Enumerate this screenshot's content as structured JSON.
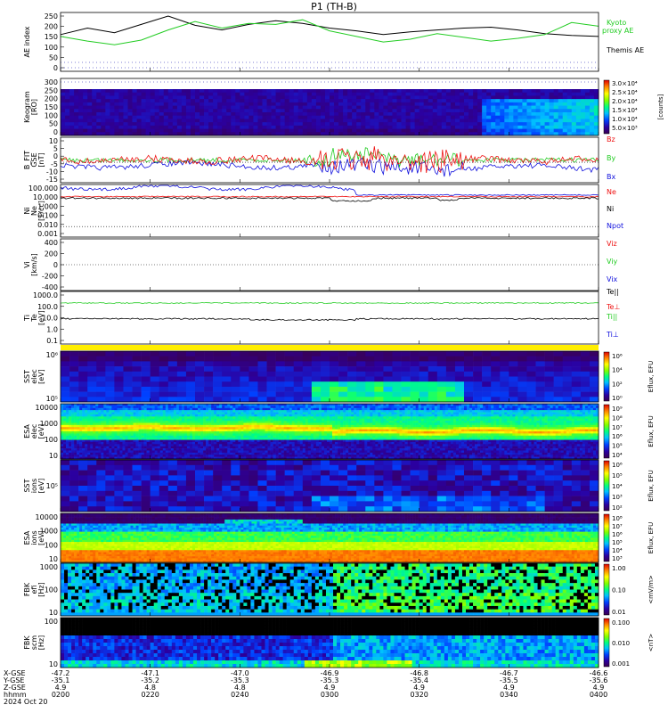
{
  "title": "P1  (TH-B)",
  "colors": {
    "black": "#000000",
    "green": "#22cc22",
    "red": "#ee1111",
    "blue": "#1111dd",
    "yellow": "#ffee00"
  },
  "chart_data": [
    {
      "type": "line",
      "panel": "ae",
      "ylabel": "AE index",
      "ytick_labels": [
        "250",
        "200",
        "150",
        "100",
        "50",
        "0"
      ],
      "legend": [
        {
          "name": "Kyoto\nproxy AE",
          "color": "#22cc22"
        },
        {
          "name": "Themis AE",
          "color": "#000000"
        }
      ],
      "series": [
        {
          "name": "Themis AE",
          "color": "#000000",
          "x": [
            0,
            0.05,
            0.1,
            0.15,
            0.2,
            0.25,
            0.3,
            0.35,
            0.4,
            0.45,
            0.5,
            0.55,
            0.6,
            0.65,
            0.7,
            0.75,
            0.8,
            0.85,
            0.9,
            0.95,
            1.0
          ],
          "values": [
            150,
            185,
            160,
            205,
            250,
            200,
            175,
            205,
            225,
            210,
            185,
            170,
            150,
            165,
            175,
            185,
            190,
            175,
            155,
            145,
            140
          ]
        },
        {
          "name": "Kyoto proxy AE",
          "color": "#22cc22",
          "x": [
            0,
            0.05,
            0.1,
            0.15,
            0.2,
            0.25,
            0.3,
            0.35,
            0.4,
            0.45,
            0.5,
            0.55,
            0.6,
            0.65,
            0.7,
            0.75,
            0.8,
            0.85,
            0.9,
            0.95,
            1.0
          ],
          "values": [
            140,
            115,
            95,
            120,
            175,
            220,
            185,
            210,
            205,
            230,
            170,
            140,
            110,
            125,
            155,
            135,
            115,
            130,
            150,
            215,
            195
          ]
        }
      ]
    },
    {
      "type": "heatmap",
      "panel": "keogram",
      "ylabel": "Keogram",
      "ylabel2": "[RO]",
      "ytick_labels": [
        "300",
        "250",
        "200",
        "150",
        "100",
        "50",
        "0"
      ],
      "colorbar_ticks": [
        "3.0×10⁴",
        "2.5×10⁴",
        "2.0×10⁴",
        "1.5×10⁴",
        "1.0×10⁴",
        "5.0×10³"
      ],
      "colorbar_unit": "[counts]"
    },
    {
      "type": "line",
      "panel": "bfield",
      "ylabel": "B_FIT",
      "ylabel2": "GSE",
      "ylabel3": "[nT]",
      "ytick_labels": [
        "10",
        "5",
        "0",
        "-5",
        "-10",
        "-15"
      ],
      "legend": [
        {
          "name": "Bz",
          "color": "#ee1111"
        },
        {
          "name": "By",
          "color": "#22cc22"
        },
        {
          "name": "Bx",
          "color": "#1111dd"
        }
      ]
    },
    {
      "type": "line",
      "panel": "density",
      "ylabel": "Ni",
      "ylabel2": "Ne",
      "ylabel3": "[1/cc]",
      "ytick_labels": [
        "100.000",
        "10.000",
        "1.000",
        "0.100",
        "0.010",
        "0.001"
      ],
      "legend": [
        {
          "name": "Ne",
          "color": "#ee1111"
        },
        {
          "name": "Ni",
          "color": "#000000"
        },
        {
          "name": "Npot",
          "color": "#1111dd"
        }
      ]
    },
    {
      "type": "line",
      "panel": "velocity",
      "ylabel": "Vi",
      "ylabel2": "[km/s]",
      "ytick_labels": [
        "400",
        "200",
        "0",
        "-200",
        "-400"
      ],
      "legend": [
        {
          "name": "Viz",
          "color": "#ee1111"
        },
        {
          "name": "Viy",
          "color": "#22cc22"
        },
        {
          "name": "Vix",
          "color": "#1111dd"
        }
      ]
    },
    {
      "type": "line",
      "panel": "temperature",
      "ylabel": "Ti",
      "ylabel2": "Te",
      "ylabel3": "[eV]",
      "ytick_labels": [
        "1000.0",
        "100.0",
        "10.0",
        "1.0",
        "0.1"
      ],
      "legend": [
        {
          "name": "Te||",
          "color": "#000000"
        },
        {
          "name": "Te⊥",
          "color": "#ee1111"
        },
        {
          "name": "Ti||",
          "color": "#22cc22"
        },
        {
          "name": "Ti⊥",
          "color": "#1111dd"
        }
      ]
    },
    {
      "type": "heatmap",
      "panel": "sst_e",
      "ylabel": "SST",
      "ylabel2": "elec",
      "ylabel3": "[eV]",
      "ytick_labels": [
        "10⁶",
        "10⁵"
      ],
      "colorbar_ticks": [
        "10⁶",
        "10⁴",
        "10²",
        "10⁰"
      ],
      "colorbar_unit": "Eflux, EFU"
    },
    {
      "type": "heatmap",
      "panel": "esa_e",
      "ylabel": "ESA",
      "ylabel2": "elec",
      "ylabel3": "[eV]",
      "ytick_labels": [
        "10000",
        "1000",
        "100",
        "10"
      ],
      "colorbar_ticks": [
        "10⁹",
        "10⁸",
        "10⁷",
        "10⁶",
        "10⁵",
        "10⁴"
      ],
      "colorbar_unit": "Eflux, EFU"
    },
    {
      "type": "heatmap",
      "panel": "sst_i",
      "ylabel": "SST",
      "ylabel2": "ions",
      "ylabel3": "[eV]",
      "ytick_labels": [
        "10⁵"
      ],
      "colorbar_ticks": [
        "10⁶",
        "10⁵",
        "10⁴",
        "10³",
        "10²"
      ],
      "colorbar_unit": "Eflux, EFU"
    },
    {
      "type": "heatmap",
      "panel": "esa_i",
      "ylabel": "ESA",
      "ylabel2": "ions",
      "ylabel3": "[eV]",
      "ytick_labels": [
        "10000",
        "1000",
        "100",
        "10"
      ],
      "colorbar_ticks": [
        "10⁸",
        "10⁷",
        "10⁶",
        "10⁵",
        "10⁴",
        "10³"
      ],
      "colorbar_unit": "Eflux, EFU"
    },
    {
      "type": "heatmap",
      "panel": "fbk_e",
      "ylabel": "FBK",
      "ylabel2": "efi",
      "ylabel3": "[Hz]",
      "ytick_labels": [
        "1000",
        "100",
        "10"
      ],
      "colorbar_ticks": [
        "1.00",
        "0.10",
        "0.01"
      ],
      "colorbar_unit": "<mV/m>"
    },
    {
      "type": "heatmap",
      "panel": "fbk_b",
      "ylabel": "FBK",
      "ylabel2": "scm",
      "ylabel3": "[Hz]",
      "ytick_labels": [
        "100",
        "10"
      ],
      "colorbar_ticks": [
        "0.100",
        "0.010",
        "0.001"
      ],
      "colorbar_unit": "<nT>"
    }
  ],
  "xaxis": {
    "row_labels": [
      "X-GSE",
      "Y-GSE",
      "Z-GSE",
      "hhmm",
      "2024 Oct 20"
    ],
    "columns": [
      {
        "x": "-47.2",
        "y": "-35.1",
        "z": "4.9",
        "t": "0200"
      },
      {
        "x": "-47.1",
        "y": "-35.2",
        "z": "4.8",
        "t": "0220"
      },
      {
        "x": "-47.0",
        "y": "-35.3",
        "z": "4.8",
        "t": "0240"
      },
      {
        "x": "-46.9",
        "y": "-35.3",
        "z": "4.9",
        "t": "0300"
      },
      {
        "x": "-46.8",
        "y": "-35.4",
        "z": "4.9",
        "t": "0320"
      },
      {
        "x": "-46.7",
        "y": "-35.5",
        "z": "4.9",
        "t": "0340"
      },
      {
        "x": "-46.6",
        "y": "-35.6",
        "z": "4.9",
        "t": "0400"
      }
    ]
  }
}
